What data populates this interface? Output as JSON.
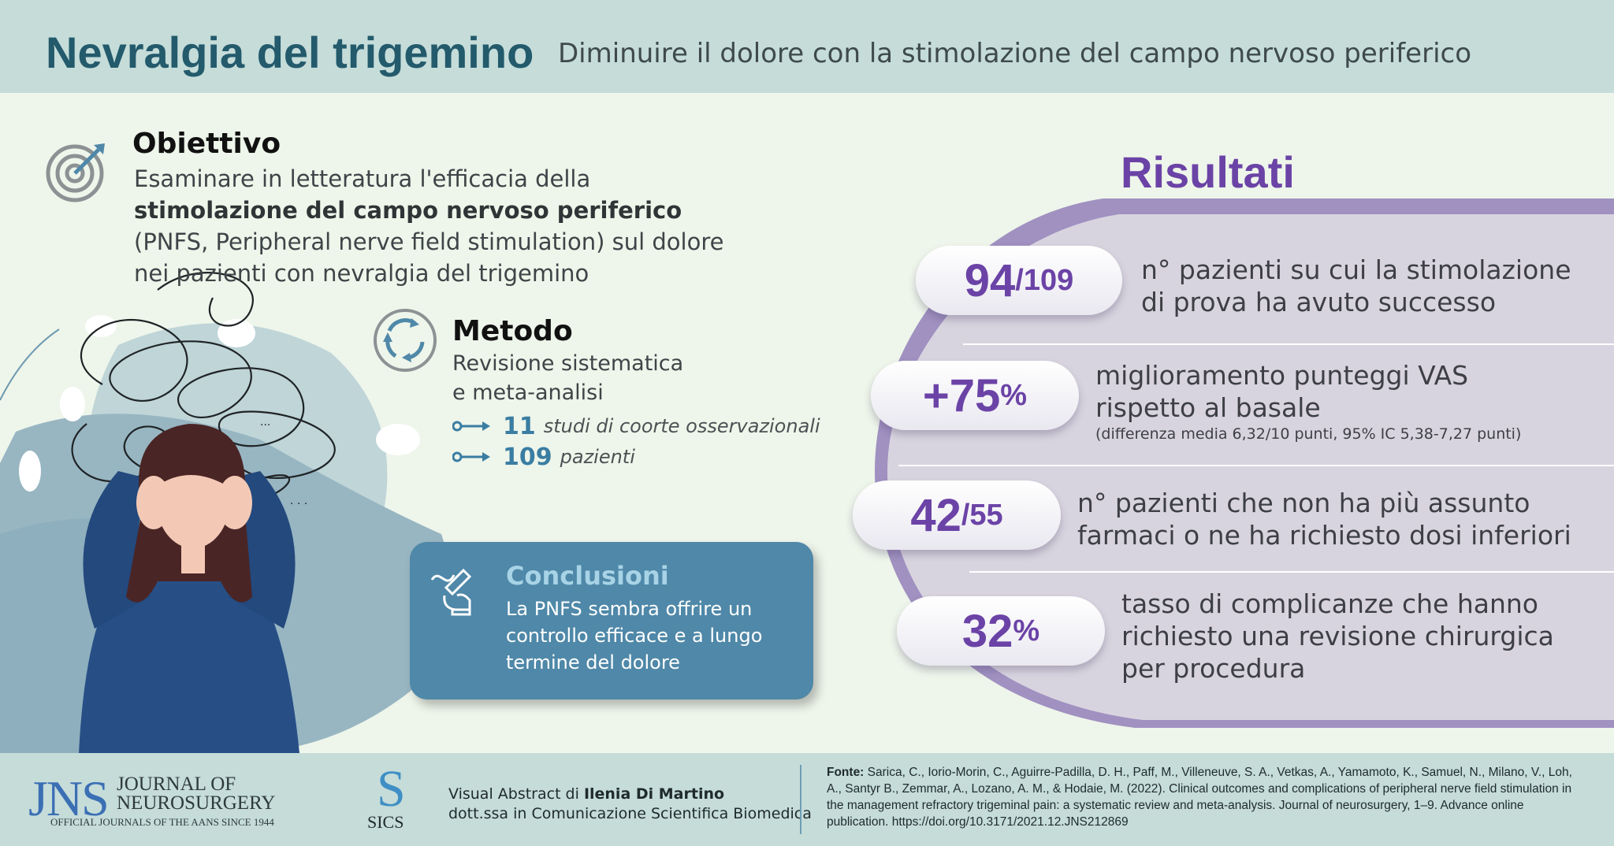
{
  "header": {
    "title": "Nevralgia del trigemino",
    "subtitle": "Diminuire il dolore con la stimolazione del campo nervoso periferico"
  },
  "obiettivo": {
    "heading": "Obiettivo",
    "text_intro": "Esaminare in letteratura l'efficacia della ",
    "text_bold": "stimolazione del campo nervoso periferico",
    "text_rest": " (PNFS, Peripheral nerve field stimulation) sul dolore nei pazienti con nevralgia del trigemino",
    "icon": "target-dart-icon"
  },
  "metodo": {
    "heading": "Metodo",
    "line1": "Revisione sistematica",
    "line2": "e meta-analisi",
    "bullets": [
      {
        "number": "11",
        "label": "studi di coorte osservazionali"
      },
      {
        "number": "109",
        "label": "pazienti"
      }
    ],
    "icon": "cycle-arrows-icon"
  },
  "conclusioni": {
    "heading": "Conclusioni",
    "text": "La PNFS sembra offrire un controllo efficace e a lungo termine del dolore",
    "icon": "hand-writing-icon"
  },
  "risultati": {
    "heading": "Risultati",
    "items": [
      {
        "big": "94",
        "small": "/109",
        "line1": "n° pazienti su cui la stimolazione",
        "line2": "di prova ha avuto successo",
        "note": ""
      },
      {
        "big": "+75",
        "small": "%",
        "line1": "miglioramento punteggi VAS",
        "line2": "rispetto al basale",
        "note": "(differenza media 6,32/10 punti, 95% IC 5,38-7,27 punti)"
      },
      {
        "big": "42",
        "small": "/55",
        "line1": "n° pazienti che non ha più assunto",
        "line2": "farmaci o ne ha richiesto dosi inferiori",
        "note": ""
      },
      {
        "big": "32",
        "small": "%",
        "line1": "tasso di complicanze che hanno",
        "line2": "richiesto una revisione chirurgica",
        "line3": "per procedura"
      }
    ]
  },
  "footer": {
    "jns_letters": "JNS",
    "jns_line1": "JOURNAL OF",
    "jns_line2": "NEUROSURGERY",
    "jns_tagline": "OFFICIAL JOURNALS OF THE AANS SINCE 1944",
    "sics_s": "S",
    "sics_text": "SICS",
    "visual_abstract_prefix": "Visual Abstract di ",
    "author": "Ilenia Di Martino",
    "author_title": "dott.ssa in Comunicazione Scientifica Biomedica",
    "fonte_label": "Fonte:",
    "fonte_text": " Sarica, C., Iorio-Morin, C., Aguirre-Padilla, D. H., Paff, M., Villeneuve, S. A., Vetkas, A., Yamamoto, K., Samuel, N., Milano, V., Loh, A., Santyr B., Zemmar, A., Lozano, A. M., & Hodaie, M. (2022). Clinical outcomes and complications of peripheral nerve field stimulation in the management refractory trigeminal pain: a systematic review and meta-analysis. Journal of neurosurgery, 1–9. Advance online publication. https://doi.org/10.3171/2021.12.JNS212869"
  },
  "colors": {
    "header_bg": "#c5dcd9",
    "title": "#235a6c",
    "accent_purple": "#6b43a6",
    "accent_blue": "#3a7da3",
    "card_blue": "#4f88a8",
    "results_panel": "#d8d4df"
  }
}
